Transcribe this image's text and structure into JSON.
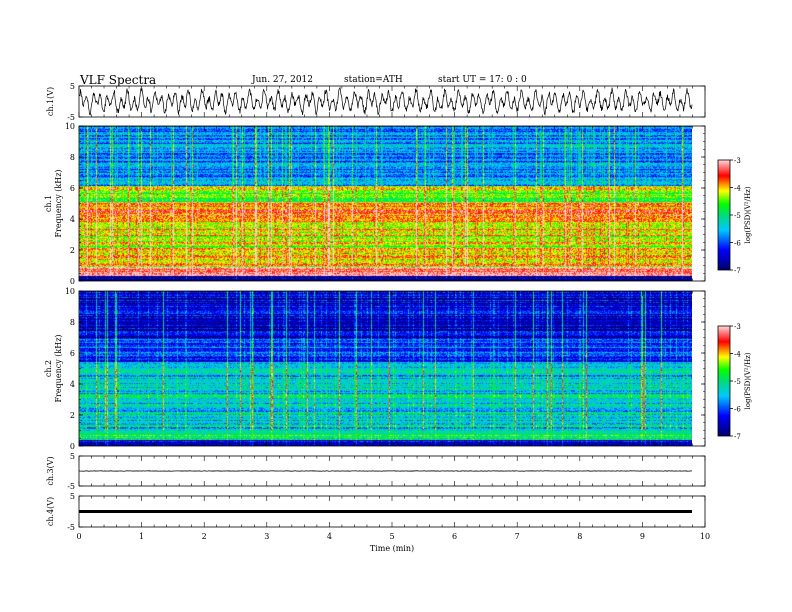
{
  "header": {
    "title": "VLF  Spectra",
    "date": "Jun. 27, 2012",
    "station": "station=ATH",
    "start": "start  UT  =    17: 0   : 0"
  },
  "chart_data": [
    {
      "type": "line",
      "panel": "ch1-waveform",
      "ylabel": "ch.1(V)",
      "ylim": [
        -5,
        5
      ],
      "yticks": [
        "5",
        "-5"
      ],
      "xlim": [
        0,
        10
      ],
      "data_end_min": 9.8,
      "series": [
        {
          "values_range": [
            -4,
            4
          ],
          "style": "noisy oscillation"
        }
      ]
    },
    {
      "type": "heatmap",
      "panel": "ch1-spectrogram",
      "ylabel": "Frequency  (kHz)",
      "channel_label": "ch.1",
      "ylim": [
        0,
        10
      ],
      "yticks": [
        "0",
        "2",
        "4",
        "6",
        "8",
        "10"
      ],
      "xlim": [
        0,
        10
      ],
      "bands": [
        {
          "from": 0,
          "to": 0.3,
          "level": -7
        },
        {
          "from": 0.3,
          "to": 0.9,
          "level": -3.3
        },
        {
          "from": 0.9,
          "to": 2.1,
          "level": -4
        },
        {
          "from": 2.1,
          "to": 2.9,
          "level": -4.3
        },
        {
          "from": 2.9,
          "to": 3.9,
          "level": -4.1
        },
        {
          "from": 3.9,
          "to": 5.1,
          "level": -3.8
        },
        {
          "from": 5.1,
          "to": 5.7,
          "level": -4.6
        },
        {
          "from": 5.7,
          "to": 6.1,
          "level": -4.4
        },
        {
          "from": 6.1,
          "to": 10,
          "level": -5.8
        }
      ],
      "colorbar": {
        "label": "log(PSD)(V²/Hz)",
        "range": [
          -7,
          -3
        ],
        "ticks": [
          "-3",
          "-4",
          "-5",
          "-6",
          "-7"
        ]
      }
    },
    {
      "type": "heatmap",
      "panel": "ch2-spectrogram",
      "ylabel": "Frequency  (kHz)",
      "channel_label": "ch.2",
      "ylim": [
        0,
        10
      ],
      "yticks": [
        "0",
        "2",
        "4",
        "6",
        "8",
        "10"
      ],
      "xlim": [
        0,
        10
      ],
      "bands": [
        {
          "from": 0,
          "to": 0.4,
          "level": -6.5
        },
        {
          "from": 0.4,
          "to": 1.1,
          "level": -5
        },
        {
          "from": 1.1,
          "to": 2.8,
          "level": -5.4
        },
        {
          "from": 2.8,
          "to": 3.3,
          "level": -5.1
        },
        {
          "from": 3.3,
          "to": 5.4,
          "level": -5.5
        },
        {
          "from": 5.4,
          "to": 6.9,
          "level": -6.1
        },
        {
          "from": 6.9,
          "to": 10,
          "level": -6.6
        }
      ],
      "colorbar": {
        "label": "log(PSD)(V²/Hz)",
        "range": [
          -7,
          -3
        ],
        "ticks": [
          "-3",
          "-4",
          "-5",
          "-6",
          "-7"
        ]
      }
    },
    {
      "type": "line",
      "panel": "ch3-waveform",
      "ylabel": "ch.3(V)",
      "ylim": [
        -5,
        5
      ],
      "yticks": [
        "5",
        "-5"
      ],
      "xlim": [
        0,
        10
      ],
      "data_end_min": 9.8,
      "series": [
        {
          "baseline": 0,
          "style": "flat"
        }
      ]
    },
    {
      "type": "line",
      "panel": "ch4-waveform",
      "ylabel": "ch.4(V)",
      "ylim": [
        -5,
        5
      ],
      "yticks": [
        "5",
        "-5"
      ],
      "xlim": [
        0,
        10
      ],
      "data_end_min": 9.8,
      "series": [
        {
          "baseline": 0,
          "style": "thick flat"
        }
      ]
    }
  ],
  "xaxis": {
    "label": "Time  (min)",
    "ticks": [
      "0",
      "1",
      "2",
      "3",
      "4",
      "5",
      "6",
      "7",
      "8",
      "9",
      "10"
    ]
  }
}
